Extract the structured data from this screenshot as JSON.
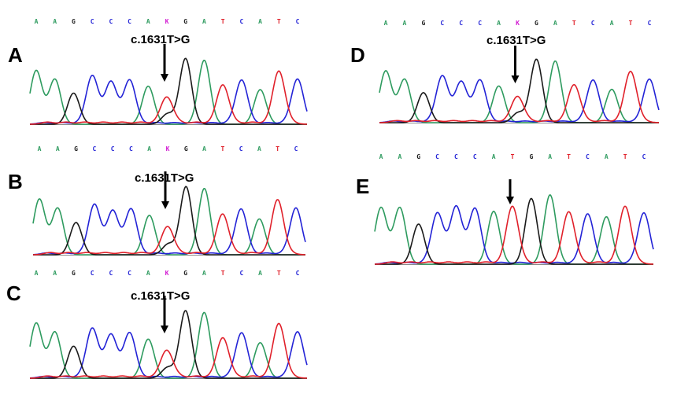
{
  "colors": {
    "A": "#2e9b5f",
    "C": "#2323d6",
    "G": "#1a1a1a",
    "T": "#e0202a",
    "K": "#d21ad2"
  },
  "panels": [
    {
      "id": "A",
      "letter": "A",
      "label": "c.1631T>G",
      "sequence": [
        "A",
        "A",
        "G",
        "C",
        "C",
        "C",
        "A",
        "K",
        "G",
        "A",
        "T",
        "C",
        "A",
        "T",
        "C"
      ]
    },
    {
      "id": "B",
      "letter": "B",
      "label": "c.1631T>G",
      "sequence": [
        "A",
        "A",
        "G",
        "C",
        "C",
        "C",
        "A",
        "K",
        "G",
        "A",
        "T",
        "C",
        "A",
        "T",
        "C"
      ]
    },
    {
      "id": "C",
      "letter": "C",
      "label": "c.1631T>G",
      "sequence": [
        "A",
        "A",
        "G",
        "C",
        "C",
        "C",
        "A",
        "K",
        "G",
        "A",
        "T",
        "C",
        "A",
        "T",
        "C"
      ]
    },
    {
      "id": "D",
      "letter": "D",
      "label": "c.1631T>G",
      "sequence": [
        "A",
        "A",
        "G",
        "C",
        "C",
        "C",
        "A",
        "K",
        "G",
        "A",
        "T",
        "C",
        "A",
        "T",
        "C"
      ]
    },
    {
      "id": "E",
      "letter": "E",
      "label": "",
      "sequence": [
        "A",
        "A",
        "G",
        "C",
        "C",
        "C",
        "A",
        "T",
        "G",
        "A",
        "T",
        "C",
        "A",
        "T",
        "C"
      ]
    }
  ]
}
